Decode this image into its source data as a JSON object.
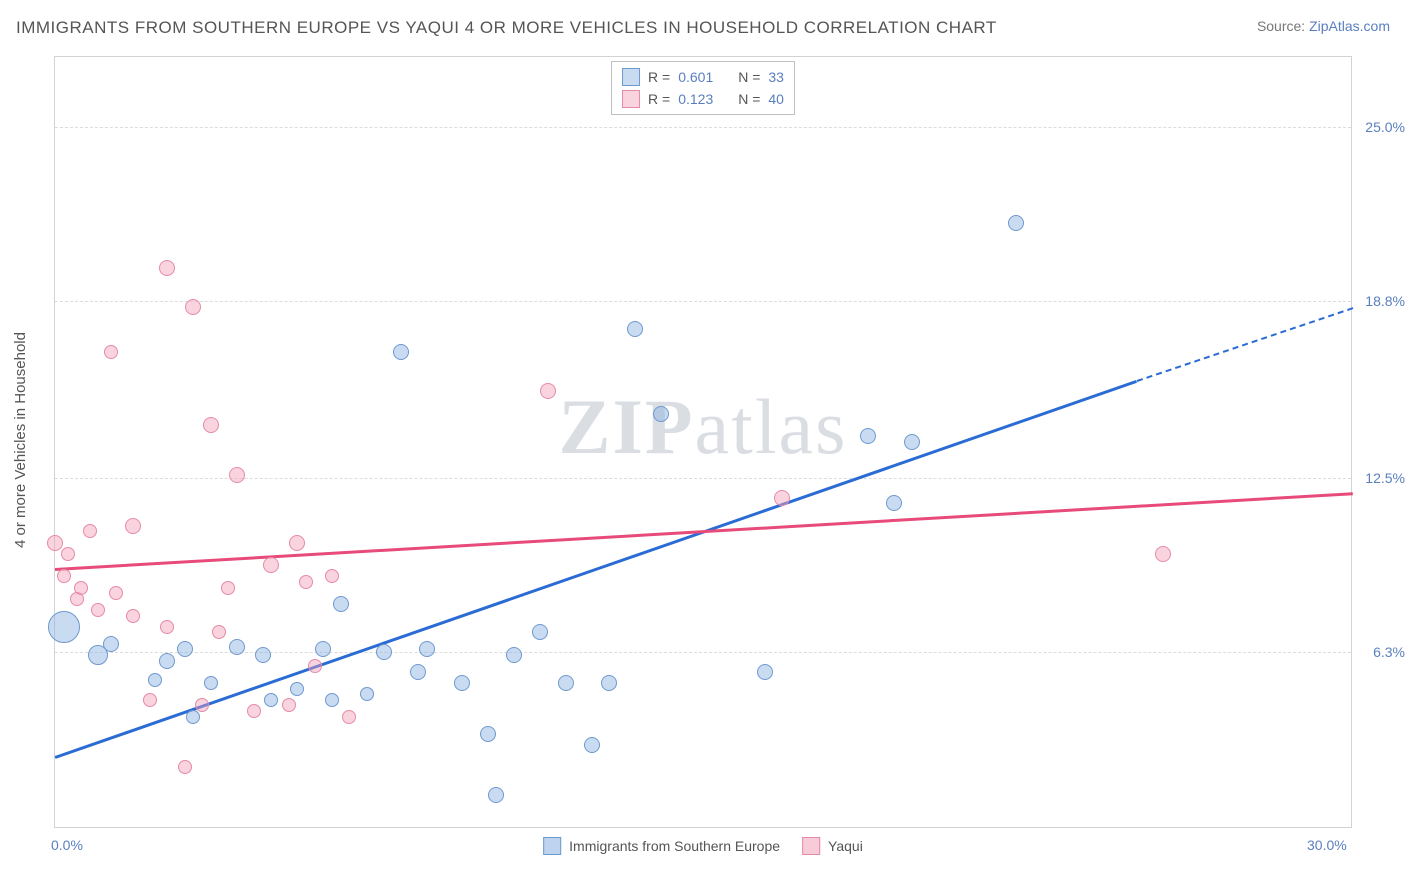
{
  "header": {
    "title": "IMMIGRANTS FROM SOUTHERN EUROPE VS YAQUI 4 OR MORE VEHICLES IN HOUSEHOLD CORRELATION CHART",
    "source_prefix": "Source: ",
    "source_link": "ZipAtlas.com"
  },
  "chart": {
    "ylabel": "4 or more Vehicles in Household",
    "xlim": [
      0,
      30
    ],
    "ylim": [
      0,
      27.5
    ],
    "xticks": [
      {
        "val": 0,
        "label": "0.0%"
      },
      {
        "val": 30,
        "label": "30.0%"
      }
    ],
    "yticks": [
      {
        "val": 6.3,
        "label": "6.3%"
      },
      {
        "val": 12.5,
        "label": "12.5%"
      },
      {
        "val": 18.8,
        "label": "18.8%"
      },
      {
        "val": 25.0,
        "label": "25.0%"
      }
    ],
    "grid_color": "#dcdcdc",
    "background_color": "#ffffff",
    "watermark": "ZIPatlas",
    "series": [
      {
        "name": "Immigrants from Southern Europe",
        "fill": "rgba(135,175,225,0.45)",
        "stroke": "#6e99cf",
        "line_color": "#2a6bd4",
        "r_value": "0.601",
        "n_value": "33",
        "regression": {
          "x1": 0,
          "y1": 2.6,
          "x2": 25,
          "y2": 16.0,
          "dash_to_x": 30,
          "dash_to_y": 18.6
        },
        "points": [
          {
            "x": 0.2,
            "y": 7.2,
            "r": 16
          },
          {
            "x": 1.0,
            "y": 6.2,
            "r": 10
          },
          {
            "x": 1.3,
            "y": 6.6,
            "r": 8
          },
          {
            "x": 2.6,
            "y": 6.0,
            "r": 8
          },
          {
            "x": 2.3,
            "y": 5.3,
            "r": 7
          },
          {
            "x": 3.0,
            "y": 6.4,
            "r": 8
          },
          {
            "x": 3.6,
            "y": 5.2,
            "r": 7
          },
          {
            "x": 3.2,
            "y": 4.0,
            "r": 7
          },
          {
            "x": 4.2,
            "y": 6.5,
            "r": 8
          },
          {
            "x": 4.8,
            "y": 6.2,
            "r": 8
          },
          {
            "x": 5.0,
            "y": 4.6,
            "r": 7
          },
          {
            "x": 5.6,
            "y": 5.0,
            "r": 7
          },
          {
            "x": 6.4,
            "y": 4.6,
            "r": 7
          },
          {
            "x": 6.2,
            "y": 6.4,
            "r": 8
          },
          {
            "x": 6.6,
            "y": 8.0,
            "r": 8
          },
          {
            "x": 7.2,
            "y": 4.8,
            "r": 7
          },
          {
            "x": 7.6,
            "y": 6.3,
            "r": 8
          },
          {
            "x": 8.4,
            "y": 5.6,
            "r": 8
          },
          {
            "x": 8.6,
            "y": 6.4,
            "r": 8
          },
          {
            "x": 8.0,
            "y": 17.0,
            "r": 8
          },
          {
            "x": 9.4,
            "y": 5.2,
            "r": 8
          },
          {
            "x": 10.0,
            "y": 3.4,
            "r": 8
          },
          {
            "x": 10.2,
            "y": 1.2,
            "r": 8
          },
          {
            "x": 10.6,
            "y": 6.2,
            "r": 8
          },
          {
            "x": 11.2,
            "y": 7.0,
            "r": 8
          },
          {
            "x": 11.8,
            "y": 5.2,
            "r": 8
          },
          {
            "x": 12.4,
            "y": 3.0,
            "r": 8
          },
          {
            "x": 12.8,
            "y": 5.2,
            "r": 8
          },
          {
            "x": 13.4,
            "y": 17.8,
            "r": 8
          },
          {
            "x": 14.0,
            "y": 14.8,
            "r": 8
          },
          {
            "x": 16.4,
            "y": 5.6,
            "r": 8
          },
          {
            "x": 18.8,
            "y": 14.0,
            "r": 8
          },
          {
            "x": 19.8,
            "y": 13.8,
            "r": 8
          },
          {
            "x": 19.4,
            "y": 11.6,
            "r": 8
          },
          {
            "x": 22.2,
            "y": 21.6,
            "r": 8
          }
        ]
      },
      {
        "name": "Yaqui",
        "fill": "rgba(242,160,185,0.45)",
        "stroke": "#e58aa8",
        "line_color": "#e84a7a",
        "r_value": "0.123",
        "n_value": "40",
        "regression": {
          "x1": 0,
          "y1": 9.3,
          "x2": 30,
          "y2": 12.0
        },
        "points": [
          {
            "x": 0.0,
            "y": 10.2,
            "r": 8
          },
          {
            "x": 0.2,
            "y": 9.0,
            "r": 7
          },
          {
            "x": 0.3,
            "y": 9.8,
            "r": 7
          },
          {
            "x": 0.5,
            "y": 8.2,
            "r": 7
          },
          {
            "x": 0.6,
            "y": 8.6,
            "r": 7
          },
          {
            "x": 0.8,
            "y": 10.6,
            "r": 7
          },
          {
            "x": 1.0,
            "y": 7.8,
            "r": 7
          },
          {
            "x": 1.3,
            "y": 17.0,
            "r": 7
          },
          {
            "x": 1.4,
            "y": 8.4,
            "r": 7
          },
          {
            "x": 1.8,
            "y": 10.8,
            "r": 8
          },
          {
            "x": 1.8,
            "y": 7.6,
            "r": 7
          },
          {
            "x": 2.2,
            "y": 4.6,
            "r": 7
          },
          {
            "x": 2.6,
            "y": 20.0,
            "r": 8
          },
          {
            "x": 2.6,
            "y": 7.2,
            "r": 7
          },
          {
            "x": 3.0,
            "y": 2.2,
            "r": 7
          },
          {
            "x": 3.2,
            "y": 18.6,
            "r": 8
          },
          {
            "x": 3.4,
            "y": 4.4,
            "r": 7
          },
          {
            "x": 3.6,
            "y": 14.4,
            "r": 8
          },
          {
            "x": 3.8,
            "y": 7.0,
            "r": 7
          },
          {
            "x": 4.0,
            "y": 8.6,
            "r": 7
          },
          {
            "x": 4.2,
            "y": 12.6,
            "r": 8
          },
          {
            "x": 4.6,
            "y": 4.2,
            "r": 7
          },
          {
            "x": 5.0,
            "y": 9.4,
            "r": 8
          },
          {
            "x": 5.4,
            "y": 4.4,
            "r": 7
          },
          {
            "x": 5.6,
            "y": 10.2,
            "r": 8
          },
          {
            "x": 5.8,
            "y": 8.8,
            "r": 7
          },
          {
            "x": 6.0,
            "y": 5.8,
            "r": 7
          },
          {
            "x": 6.4,
            "y": 9.0,
            "r": 7
          },
          {
            "x": 6.8,
            "y": 4.0,
            "r": 7
          },
          {
            "x": 11.4,
            "y": 15.6,
            "r": 8
          },
          {
            "x": 16.8,
            "y": 11.8,
            "r": 8
          },
          {
            "x": 25.6,
            "y": 9.8,
            "r": 8
          }
        ]
      }
    ],
    "legend_top": {
      "r_label": "R =",
      "n_label": "N ="
    },
    "legend_bottom": [
      {
        "label": "Immigrants from Southern Europe",
        "fill": "rgba(135,175,225,0.55)",
        "stroke": "#6e99cf"
      },
      {
        "label": "Yaqui",
        "fill": "rgba(242,160,185,0.55)",
        "stroke": "#e58aa8"
      }
    ]
  }
}
